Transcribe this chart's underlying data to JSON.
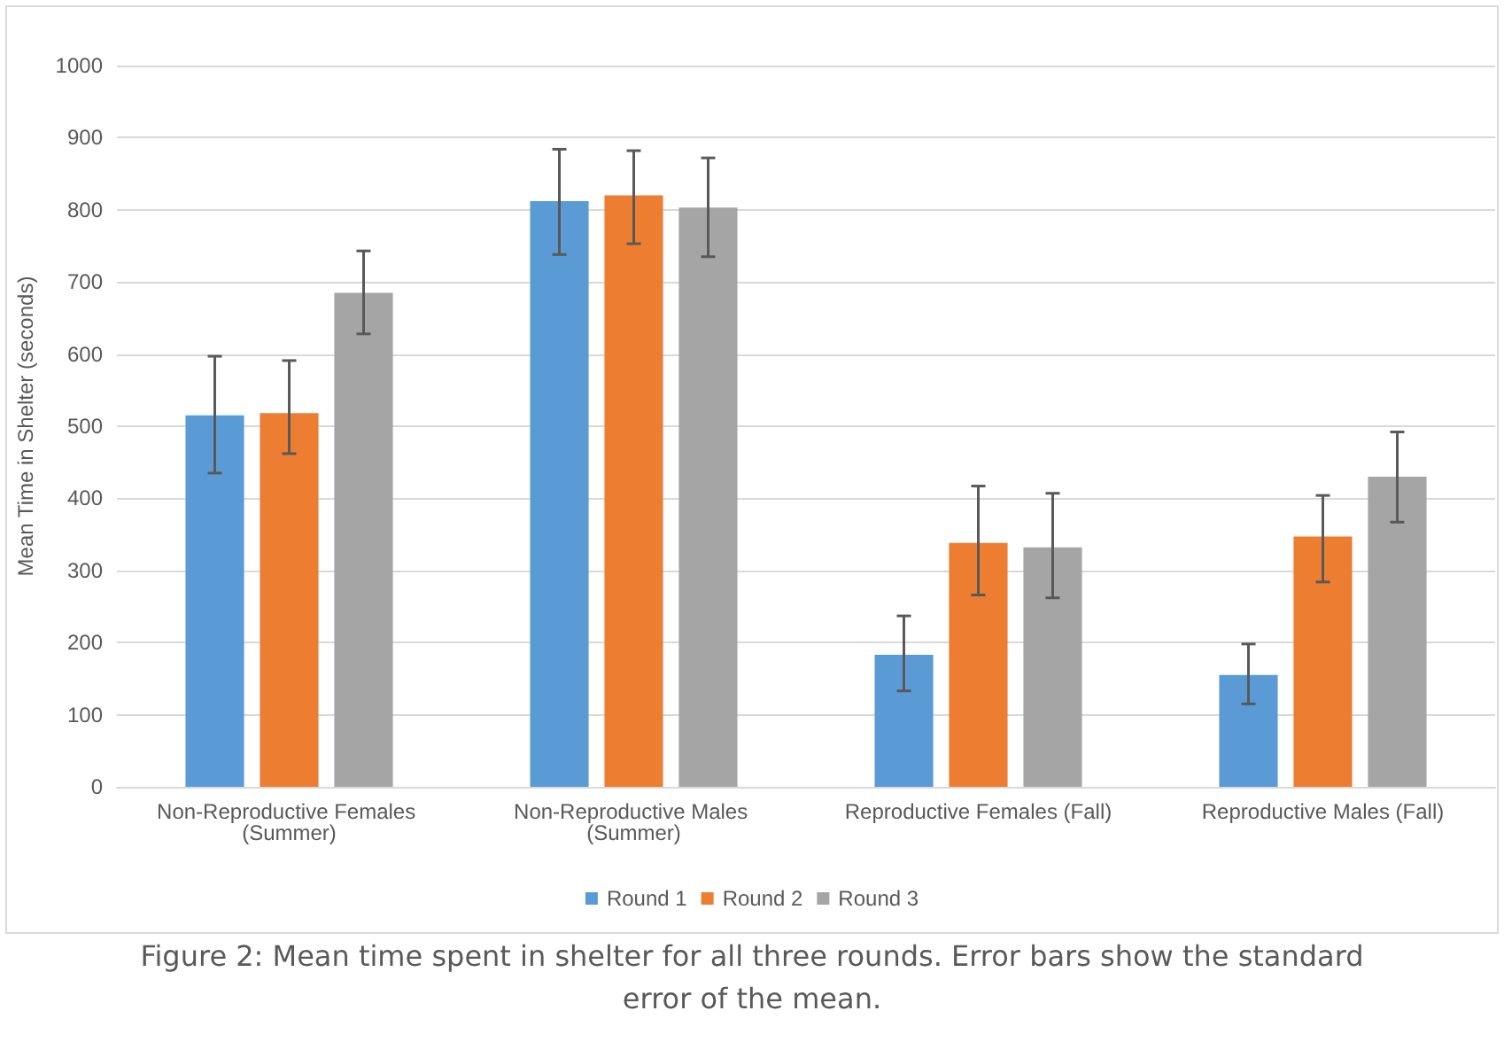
{
  "chart_data": {
    "type": "bar",
    "ylabel": "Mean Time in Shelter (seconds)",
    "categories": [
      "Non-Reproductive Females (Summer)",
      "Non-Reproductive Males (Summer)",
      "Reproductive Females (Fall)",
      "Reproductive Males (Fall)"
    ],
    "series": [
      {
        "name": "Round 1",
        "color": "#5b9bd5",
        "values": [
          515,
          812,
          183,
          155
        ],
        "errors": [
          [
            435,
            597
          ],
          [
            738,
            884
          ],
          [
            133,
            237
          ],
          [
            115,
            198
          ]
        ]
      },
      {
        "name": "Round 2",
        "color": "#ed7d31",
        "values": [
          518,
          820,
          338,
          347
        ],
        "errors": [
          [
            462,
            591
          ],
          [
            753,
            882
          ],
          [
            266,
            417
          ],
          [
            284,
            404
          ]
        ]
      },
      {
        "name": "Round 3",
        "color": "#a5a5a5",
        "values": [
          685,
          803,
          332,
          430
        ],
        "errors": [
          [
            628,
            743
          ],
          [
            735,
            872
          ],
          [
            262,
            407
          ],
          [
            367,
            492
          ]
        ]
      }
    ],
    "ylim": [
      0,
      1000
    ],
    "yticks": [
      0,
      100,
      200,
      300,
      400,
      500,
      600,
      700,
      800,
      900,
      1000
    ],
    "grid": "y",
    "legend": "bottom",
    "annotations": [
      "Figure 2: Mean time spent in shelter for all three rounds. Error bars show the standard error of the mean."
    ]
  }
}
